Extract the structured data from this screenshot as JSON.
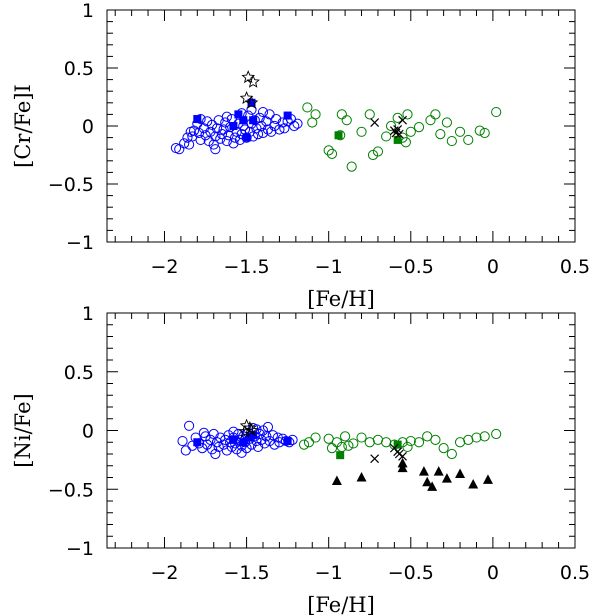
{
  "chart_data": [
    {
      "type": "scatter",
      "xlabel": "[Fe/H]",
      "ylabel": "[Cr/Fe]I",
      "xlim": [
        -2.35,
        0.5
      ],
      "ylim": [
        -1,
        1
      ],
      "xticks": [
        -2,
        -1.5,
        -1,
        -0.5,
        0,
        0.5
      ],
      "xtick_labels": [
        "−2",
        "−1.5",
        "−1",
        "−0.5",
        "0",
        "0.5"
      ],
      "yticks": [
        -1,
        -0.5,
        0,
        0.5,
        1
      ],
      "ytick_labels": [
        "−1",
        "−0.5",
        "0",
        "0.5",
        "1"
      ],
      "series": [
        {
          "marker": "open-circle",
          "color": "#0000ff",
          "points": [
            [
              -1.93,
              -0.19
            ],
            [
              -1.91,
              -0.2
            ],
            [
              -1.88,
              -0.15
            ],
            [
              -1.86,
              -0.1
            ],
            [
              -1.85,
              -0.16
            ],
            [
              -1.83,
              -0.09
            ],
            [
              -1.82,
              -0.04
            ],
            [
              -1.8,
              0.02
            ],
            [
              -1.79,
              -0.06
            ],
            [
              -1.78,
              -0.12
            ],
            [
              -1.76,
              -0.02
            ],
            [
              -1.75,
              -0.08
            ],
            [
              -1.74,
              0.04
            ],
            [
              -1.73,
              -0.13
            ],
            [
              -1.72,
              -0.05
            ],
            [
              -1.71,
              0.01
            ],
            [
              -1.7,
              -0.16
            ],
            [
              -1.69,
              -0.09
            ],
            [
              -1.68,
              -0.02
            ],
            [
              -1.67,
              0.05
            ],
            [
              -1.66,
              -0.11
            ],
            [
              -1.65,
              -0.07
            ],
            [
              -1.64,
              -0.03
            ],
            [
              -1.63,
              0.03
            ],
            [
              -1.62,
              -0.13
            ],
            [
              -1.61,
              -0.08
            ],
            [
              -1.6,
              -0.01
            ],
            [
              -1.59,
              0.06
            ],
            [
              -1.58,
              -0.15
            ],
            [
              -1.57,
              -0.1
            ],
            [
              -1.56,
              -0.05
            ],
            [
              -1.55,
              0.02
            ],
            [
              -1.54,
              -0.12
            ],
            [
              -1.53,
              -0.07
            ],
            [
              -1.52,
              0.0
            ],
            [
              -1.51,
              -0.03
            ],
            [
              -1.5,
              -0.1
            ],
            [
              -1.49,
              0.09
            ],
            [
              -1.48,
              -0.05
            ],
            [
              -1.47,
              0.02
            ],
            [
              -1.46,
              -0.09
            ],
            [
              -1.45,
              0.05
            ],
            [
              -1.44,
              -0.02
            ],
            [
              -1.43,
              -0.07
            ],
            [
              -1.42,
              0.07
            ],
            [
              -1.41,
              0.0
            ],
            [
              -1.4,
              -0.06
            ],
            [
              -1.38,
              0.04
            ],
            [
              -1.37,
              -0.03
            ],
            [
              -1.36,
              0.1
            ],
            [
              -1.35,
              -0.05
            ],
            [
              -1.33,
              0.0
            ],
            [
              -1.32,
              0.06
            ],
            [
              -1.3,
              -0.03
            ],
            [
              -1.28,
              0.03
            ],
            [
              -1.27,
              -0.02
            ],
            [
              -1.25,
              0.04
            ],
            [
              -1.23,
              0.06
            ],
            [
              -1.21,
              0.0
            ],
            [
              -1.19,
              0.02
            ],
            [
              -1.84,
              -0.05
            ],
            [
              -1.62,
              0.08
            ],
            [
              -1.53,
              0.11
            ],
            [
              -1.47,
              0.14
            ],
            [
              -1.4,
              0.12
            ],
            [
              -1.69,
              -0.2
            ],
            [
              -1.78,
              0.06
            ]
          ]
        },
        {
          "marker": "filled-square",
          "color": "#0000ff",
          "points": [
            [
              -1.8,
              0.06
            ],
            [
              -1.55,
              0.1
            ],
            [
              -1.52,
              0.05
            ],
            [
              -1.5,
              -0.1
            ],
            [
              -1.47,
              0.2
            ],
            [
              -1.46,
              0.05
            ],
            [
              -1.25,
              0.09
            ],
            [
              -1.58,
              0.0
            ]
          ]
        },
        {
          "marker": "open-circle",
          "color": "#008000",
          "points": [
            [
              -1.13,
              0.16
            ],
            [
              -1.1,
              0.03
            ],
            [
              -1.08,
              0.1
            ],
            [
              -1.0,
              -0.21
            ],
            [
              -0.98,
              -0.24
            ],
            [
              -0.93,
              -0.08
            ],
            [
              -0.92,
              0.1
            ],
            [
              -0.89,
              0.05
            ],
            [
              -0.86,
              -0.35
            ],
            [
              -0.8,
              -0.05
            ],
            [
              -0.75,
              0.1
            ],
            [
              -0.73,
              -0.25
            ],
            [
              -0.7,
              -0.22
            ],
            [
              -0.65,
              -0.09
            ],
            [
              -0.62,
              0.0
            ],
            [
              -0.58,
              0.07
            ],
            [
              -0.55,
              -0.1
            ],
            [
              -0.53,
              -0.14
            ],
            [
              -0.52,
              0.1
            ],
            [
              -0.5,
              -0.05
            ],
            [
              -0.45,
              -0.01
            ],
            [
              -0.38,
              0.05
            ],
            [
              -0.35,
              0.1
            ],
            [
              -0.32,
              -0.07
            ],
            [
              -0.28,
              0.03
            ],
            [
              -0.25,
              -0.13
            ],
            [
              -0.2,
              -0.05
            ],
            [
              -0.15,
              -0.12
            ],
            [
              -0.08,
              -0.04
            ],
            [
              -0.05,
              -0.06
            ],
            [
              0.02,
              0.12
            ]
          ]
        },
        {
          "marker": "filled-square",
          "color": "#008000",
          "points": [
            [
              -0.94,
              -0.08
            ],
            [
              -0.58,
              -0.12
            ]
          ]
        },
        {
          "marker": "cross",
          "color": "#000000",
          "points": [
            [
              -0.72,
              0.03
            ],
            [
              -0.6,
              -0.04
            ],
            [
              -0.58,
              -0.03
            ],
            [
              -0.59,
              -0.06
            ],
            [
              -0.55,
              0.05
            ],
            [
              -0.57,
              -0.07
            ]
          ]
        },
        {
          "marker": "open-star",
          "color": "#000000",
          "points": [
            [
              -1.49,
              0.42
            ],
            [
              -1.46,
              0.38
            ],
            [
              -1.5,
              0.24
            ],
            [
              -1.47,
              0.2
            ]
          ]
        }
      ]
    },
    {
      "type": "scatter",
      "xlabel": "[Fe/H]",
      "ylabel": "[Ni/Fe]",
      "xlim": [
        -2.35,
        0.5
      ],
      "ylim": [
        -1,
        1
      ],
      "xticks": [
        -2,
        -1.5,
        -1,
        -0.5,
        0,
        0.5
      ],
      "xtick_labels": [
        "−2",
        "−1.5",
        "−1",
        "−0.5",
        "0",
        "0.5"
      ],
      "yticks": [
        -1,
        -0.5,
        0,
        0.5,
        1
      ],
      "ytick_labels": [
        "−1",
        "−0.5",
        "0",
        "0.5",
        "1"
      ],
      "series": [
        {
          "marker": "open-circle",
          "color": "#0000ff",
          "points": [
            [
              -1.89,
              -0.09
            ],
            [
              -1.87,
              -0.17
            ],
            [
              -1.85,
              0.04
            ],
            [
              -1.83,
              -0.13
            ],
            [
              -1.81,
              -0.06
            ],
            [
              -1.79,
              -0.11
            ],
            [
              -1.77,
              -0.15
            ],
            [
              -1.75,
              -0.05
            ],
            [
              -1.74,
              -0.12
            ],
            [
              -1.72,
              -0.08
            ],
            [
              -1.71,
              -0.16
            ],
            [
              -1.7,
              -0.03
            ],
            [
              -1.68,
              -0.1
            ],
            [
              -1.67,
              -0.14
            ],
            [
              -1.66,
              -0.06
            ],
            [
              -1.64,
              -0.12
            ],
            [
              -1.63,
              -0.08
            ],
            [
              -1.62,
              -0.17
            ],
            [
              -1.61,
              -0.04
            ],
            [
              -1.6,
              -0.1
            ],
            [
              -1.59,
              -0.14
            ],
            [
              -1.58,
              -0.06
            ],
            [
              -1.57,
              -0.11
            ],
            [
              -1.56,
              -0.16
            ],
            [
              -1.55,
              -0.03
            ],
            [
              -1.54,
              -0.08
            ],
            [
              -1.53,
              -0.13
            ],
            [
              -1.52,
              -0.05
            ],
            [
              -1.51,
              -0.1
            ],
            [
              -1.5,
              -0.15
            ],
            [
              -1.49,
              -0.02
            ],
            [
              -1.48,
              -0.07
            ],
            [
              -1.47,
              -0.12
            ],
            [
              -1.46,
              0.02
            ],
            [
              -1.45,
              -0.05
            ],
            [
              -1.44,
              -0.09
            ],
            [
              -1.43,
              -0.14
            ],
            [
              -1.42,
              -0.03
            ],
            [
              -1.41,
              -0.08
            ],
            [
              -1.4,
              0.0
            ],
            [
              -1.39,
              -0.11
            ],
            [
              -1.38,
              -0.05
            ],
            [
              -1.37,
              0.03
            ],
            [
              -1.36,
              -0.09
            ],
            [
              -1.34,
              -0.04
            ],
            [
              -1.33,
              -0.12
            ],
            [
              -1.31,
              -0.06
            ],
            [
              -1.3,
              -0.1
            ],
            [
              -1.28,
              -0.07
            ],
            [
              -1.26,
              -0.09
            ],
            [
              -1.24,
              -0.1
            ],
            [
              -1.22,
              -0.08
            ],
            [
              -1.69,
              -0.2
            ],
            [
              -1.58,
              -0.01
            ],
            [
              -1.53,
              -0.19
            ],
            [
              -1.44,
              0.01
            ],
            [
              -1.76,
              -0.02
            ]
          ]
        },
        {
          "marker": "filled-square",
          "color": "#0000ff",
          "points": [
            [
              -1.8,
              -0.1
            ],
            [
              -1.58,
              -0.08
            ],
            [
              -1.52,
              -0.1
            ],
            [
              -1.48,
              -0.06
            ],
            [
              -1.46,
              -0.04
            ],
            [
              -1.25,
              -0.09
            ]
          ]
        },
        {
          "marker": "open-circle",
          "color": "#008000",
          "points": [
            [
              -1.15,
              -0.12
            ],
            [
              -1.12,
              -0.1
            ],
            [
              -1.08,
              -0.06
            ],
            [
              -1.0,
              -0.07
            ],
            [
              -0.98,
              -0.15
            ],
            [
              -0.95,
              -0.1
            ],
            [
              -0.92,
              -0.14
            ],
            [
              -0.9,
              -0.05
            ],
            [
              -0.88,
              -0.13
            ],
            [
              -0.85,
              -0.11
            ],
            [
              -0.8,
              -0.06
            ],
            [
              -0.75,
              -0.1
            ],
            [
              -0.7,
              -0.08
            ],
            [
              -0.65,
              -0.1
            ],
            [
              -0.6,
              -0.12
            ],
            [
              -0.55,
              -0.1
            ],
            [
              -0.52,
              -0.14
            ],
            [
              -0.5,
              -0.09
            ],
            [
              -0.45,
              -0.1
            ],
            [
              -0.4,
              -0.05
            ],
            [
              -0.35,
              -0.08
            ],
            [
              -0.3,
              -0.15
            ],
            [
              -0.25,
              -0.2
            ],
            [
              -0.2,
              -0.1
            ],
            [
              -0.15,
              -0.08
            ],
            [
              -0.1,
              -0.06
            ],
            [
              -0.05,
              -0.05
            ],
            [
              0.02,
              -0.03
            ]
          ]
        },
        {
          "marker": "filled-square",
          "color": "#008000",
          "points": [
            [
              -0.93,
              -0.21
            ],
            [
              -0.58,
              -0.12
            ]
          ]
        },
        {
          "marker": "cross",
          "color": "#000000",
          "points": [
            [
              -0.72,
              -0.24
            ],
            [
              -0.6,
              -0.15
            ],
            [
              -0.58,
              -0.18
            ],
            [
              -0.57,
              -0.2
            ],
            [
              -0.55,
              -0.22
            ]
          ]
        },
        {
          "marker": "open-star",
          "color": "#000000",
          "points": [
            [
              -1.5,
              0.04
            ],
            [
              -1.48,
              0.02
            ],
            [
              -1.47,
              0.0
            ],
            [
              -1.51,
              -0.01
            ]
          ]
        },
        {
          "marker": "filled-triangle",
          "color": "#000000",
          "points": [
            [
              -0.95,
              -0.43
            ],
            [
              -0.8,
              -0.4
            ],
            [
              -0.55,
              -0.28
            ],
            [
              -0.55,
              -0.32
            ],
            [
              -0.42,
              -0.35
            ],
            [
              -0.4,
              -0.44
            ],
            [
              -0.37,
              -0.48
            ],
            [
              -0.33,
              -0.35
            ],
            [
              -0.28,
              -0.41
            ],
            [
              -0.2,
              -0.37
            ],
            [
              -0.12,
              -0.46
            ],
            [
              -0.03,
              -0.42
            ]
          ]
        }
      ]
    }
  ]
}
